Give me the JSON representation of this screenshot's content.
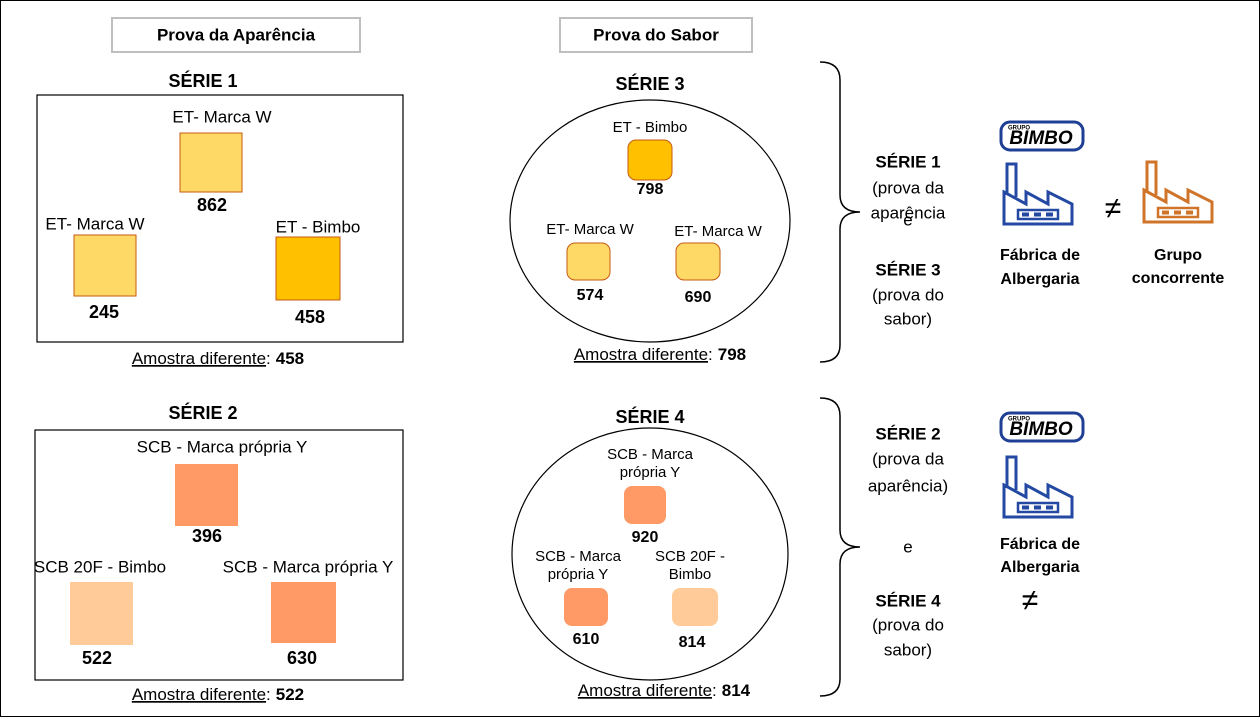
{
  "headers": [
    "Prova da Aparência",
    "Prova do Sabor"
  ],
  "series": [
    {
      "title": "SÉRIE 1",
      "samples": [
        {
          "label": [
            "ET- Marca W"
          ],
          "code": 862
        },
        {
          "label": [
            "ET- Marca W"
          ],
          "code": 245
        },
        {
          "label": [
            "ET - Bimbo"
          ],
          "code": 458
        }
      ],
      "footer": {
        "label": "Amostra diferente",
        "separator": ":",
        "code": 458
      }
    },
    {
      "title": "SÉRIE 2",
      "samples": [
        {
          "label": [
            "SCB - Marca própria Y"
          ],
          "code": 396
        },
        {
          "label": [
            "SCB 20F - Bimbo"
          ],
          "code": 522
        },
        {
          "label": [
            "SCB - Marca própria Y"
          ],
          "code": 630
        }
      ],
      "footer": {
        "label": "Amostra diferente",
        "separator": ":",
        "code": 522
      }
    },
    {
      "title": "SÉRIE 3",
      "samples": [
        {
          "label": [
            "ET - Bimbo"
          ],
          "code": 798
        },
        {
          "label": [
            "ET- Marca W"
          ],
          "code": 574
        },
        {
          "label": [
            "ET- Marca W"
          ],
          "code": 690
        }
      ],
      "footer": {
        "label": "Amostra diferente",
        "separator": ":",
        "code": 798
      }
    },
    {
      "title": "SÉRIE 4",
      "samples": [
        {
          "label": [
            "SCB - Marca",
            "própria Y"
          ],
          "code": 920
        },
        {
          "label": [
            "SCB - Marca",
            "própria Y"
          ],
          "code": 610
        },
        {
          "label": [
            "SCB 20F -",
            "Bimbo"
          ],
          "code": 814
        }
      ],
      "footer": {
        "label": "Amostra diferente",
        "separator": ":",
        "code": 814
      }
    }
  ],
  "comparisons": [
    {
      "text": [
        "SÉRIE 1",
        "(prova da",
        "aparência",
        "e",
        "SÉRIE 3",
        "(prova do",
        "sabor)"
      ],
      "logo": {
        "small": "GRUPO",
        "brand": "BIMBO"
      },
      "plant": [
        "Fábrica de",
        "Albergaria"
      ],
      "neq": "≠",
      "competitor": [
        "Grupo",
        "concorrente"
      ]
    },
    {
      "text": [
        "SÉRIE 2",
        "(prova da",
        "aparência)",
        "e",
        "SÉRIE 4",
        "(prova do",
        "sabor)"
      ],
      "logo": {
        "small": "GRUPO",
        "brand": "BIMBO"
      },
      "plant": [
        "Fábrica de",
        "Albergaria"
      ],
      "neq": "≠"
    }
  ]
}
